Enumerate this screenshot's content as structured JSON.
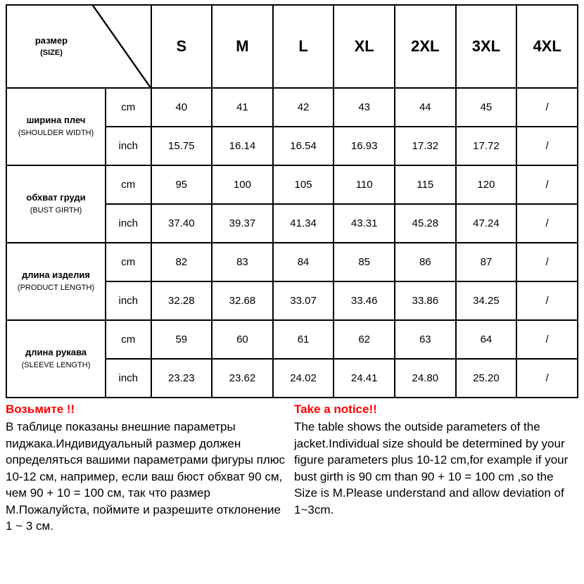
{
  "colors": {
    "border": "#000000",
    "background": "#ffffff",
    "text": "#000000",
    "notice_title": "#ff0000"
  },
  "table": {
    "type": "table",
    "header": {
      "size_label_ru": "размер",
      "size_label_en": "(SIZE)",
      "sizes": [
        "S",
        "M",
        "L",
        "XL",
        "2XL",
        "3XL",
        "4XL"
      ]
    },
    "units": {
      "cm": "cm",
      "inch": "inch"
    },
    "measurements": [
      {
        "name_ru": "ширина плеч",
        "name_en": "(SHOULDER WIDTH)",
        "cm": [
          "40",
          "41",
          "42",
          "43",
          "44",
          "45",
          "/"
        ],
        "inch": [
          "15.75",
          "16.14",
          "16.54",
          "16.93",
          "17.32",
          "17.72",
          "/"
        ]
      },
      {
        "name_ru": "обхват груди",
        "name_en": "(BUST GIRTH)",
        "cm": [
          "95",
          "100",
          "105",
          "110",
          "115",
          "120",
          "/"
        ],
        "inch": [
          "37.40",
          "39.37",
          "41.34",
          "43.31",
          "45.28",
          "47.24",
          "/"
        ]
      },
      {
        "name_ru": "длина изделия",
        "name_en": "(PRODUCT LENGTH)",
        "cm": [
          "82",
          "83",
          "84",
          "85",
          "86",
          "87",
          "/"
        ],
        "inch": [
          "32.28",
          "32.68",
          "33.07",
          "33.46",
          "33.86",
          "34.25",
          "/"
        ]
      },
      {
        "name_ru": "длина рукава",
        "name_en": "(SLEEVE LENGTH)",
        "cm": [
          "59",
          "60",
          "61",
          "62",
          "63",
          "64",
          "/"
        ],
        "inch": [
          "23.23",
          "23.62",
          "24.02",
          "24.41",
          "24.80",
          "25.20",
          "/"
        ]
      }
    ]
  },
  "notice": {
    "left": {
      "title": "Возьмите !!",
      "body": "В таблице показаны внешние параметры пиджака.Индивидуальный размер должен определяться вашими параметрами фигуры плюс 10-12 см, например, если ваш бюст обхват 90 см, чем 90 + 10 = 100 см, так что размер M.Пожалуйста, поймите и разрешите отклонение 1 ~ 3 см."
    },
    "right": {
      "title": "Take a notice!!",
      "body": "The table shows the outside parameters of the jacket.Individual size should be determined by your figure parameters plus 10-12 cm,for example if your bust girth is 90 cm than 90 + 10 = 100 cm ,so the Size is M.Please understand and allow deviation of 1~3cm."
    }
  }
}
